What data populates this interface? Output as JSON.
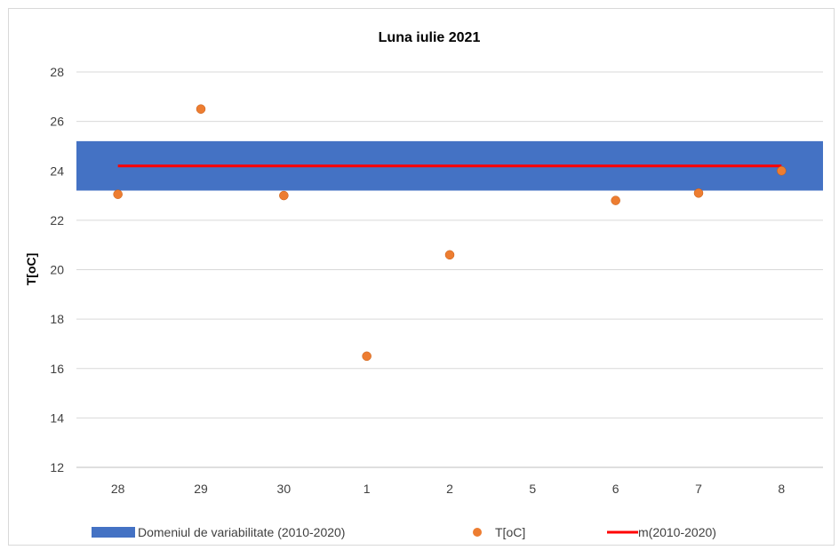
{
  "chart_data": {
    "type": "scatter",
    "title": "Luna iulie 2021",
    "ylabel": "T[oC]",
    "xlabel": "",
    "categories": [
      "28",
      "29",
      "30",
      "1",
      "2",
      "5",
      "6",
      "7",
      "8"
    ],
    "ylim": [
      12,
      28
    ],
    "yticks": [
      12,
      14,
      16,
      18,
      20,
      22,
      24,
      26,
      28
    ],
    "grid": true,
    "legend_position": "bottom",
    "series": [
      {
        "name": "Domeniul de variabilitate (2010-2020)",
        "kind": "band",
        "range": [
          23.2,
          25.2
        ],
        "color": "#4472c4"
      },
      {
        "name": "T[oC]",
        "kind": "scatter",
        "values": [
          23.05,
          26.5,
          23.0,
          16.5,
          20.6,
          null,
          22.8,
          23.1,
          24.0
        ],
        "color": "#ed7d31"
      },
      {
        "name": "m(2010-2020)",
        "kind": "line",
        "value": 24.2,
        "color": "#ff0000"
      }
    ]
  }
}
